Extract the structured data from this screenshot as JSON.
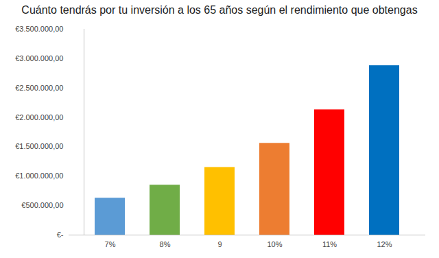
{
  "chart_data": {
    "type": "bar",
    "title": "Cuánto tendrás por tu inversión a los 65 años según el rendimiento que obtengas",
    "categories": [
      "7%",
      "8%",
      "9",
      "10%",
      "11%",
      "12%"
    ],
    "values": [
      628000,
      849000,
      1150000,
      1560000,
      2130000,
      2880000
    ],
    "colors": [
      "#5b9bd5",
      "#70ad47",
      "#ffc000",
      "#ed7d31",
      "#ff0000",
      "#0070c0"
    ],
    "ylim": [
      0,
      3500000
    ],
    "yticks": [
      {
        "value": 0,
        "label": "€-"
      },
      {
        "value": 500000,
        "label": "€500.000,00"
      },
      {
        "value": 1000000,
        "label": "€1.000.000,00"
      },
      {
        "value": 1500000,
        "label": "€1.500.000,00"
      },
      {
        "value": 2000000,
        "label": "€2.000.000,00"
      },
      {
        "value": 2500000,
        "label": "€2.500.000,00"
      },
      {
        "value": 3000000,
        "label": "€3.000.000,00"
      },
      {
        "value": 3500000,
        "label": "€3.500.000,00"
      }
    ],
    "grid": false
  }
}
